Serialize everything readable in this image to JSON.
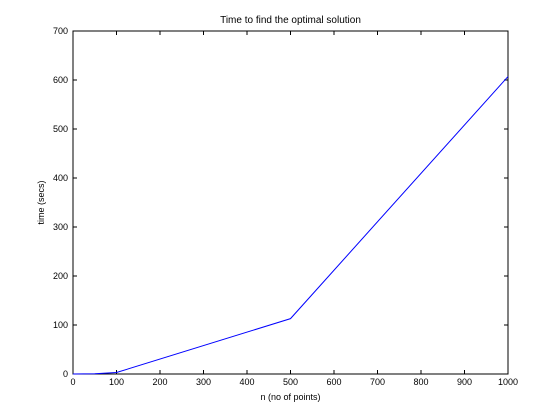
{
  "chart_data": {
    "type": "line",
    "title": "Time to find the optimal solution",
    "xlabel": "n (no of points)",
    "ylabel": "time (secs)",
    "xlim": [
      0,
      1000
    ],
    "ylim": [
      0,
      700
    ],
    "xticks": [
      0,
      100,
      200,
      300,
      400,
      500,
      600,
      700,
      800,
      900,
      1000
    ],
    "yticks": [
      0,
      100,
      200,
      300,
      400,
      500,
      600,
      700
    ],
    "grid": false,
    "series": [
      {
        "color": "#0000ff",
        "x": [
          0,
          50,
          100,
          500,
          1000
        ],
        "y": [
          0,
          0.5,
          3,
          113,
          607
        ]
      }
    ]
  }
}
